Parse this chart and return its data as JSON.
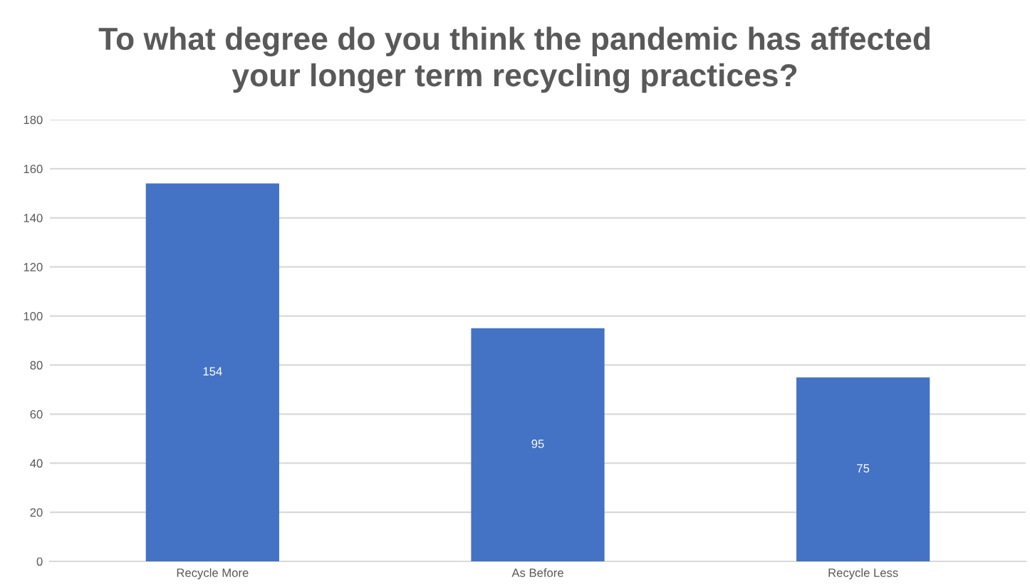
{
  "chart_data": {
    "type": "bar",
    "title": "To what degree do you think the pandemic has affected\nyour longer term recycling practices?",
    "categories": [
      "Recycle More",
      "As Before",
      "Recycle Less"
    ],
    "values": [
      154,
      95,
      75
    ],
    "color": "#4472c4",
    "ylim": [
      0,
      180
    ],
    "yticks": [
      0,
      20,
      40,
      60,
      80,
      100,
      120,
      140,
      160,
      180
    ],
    "grid": "y",
    "data_labels": true
  }
}
